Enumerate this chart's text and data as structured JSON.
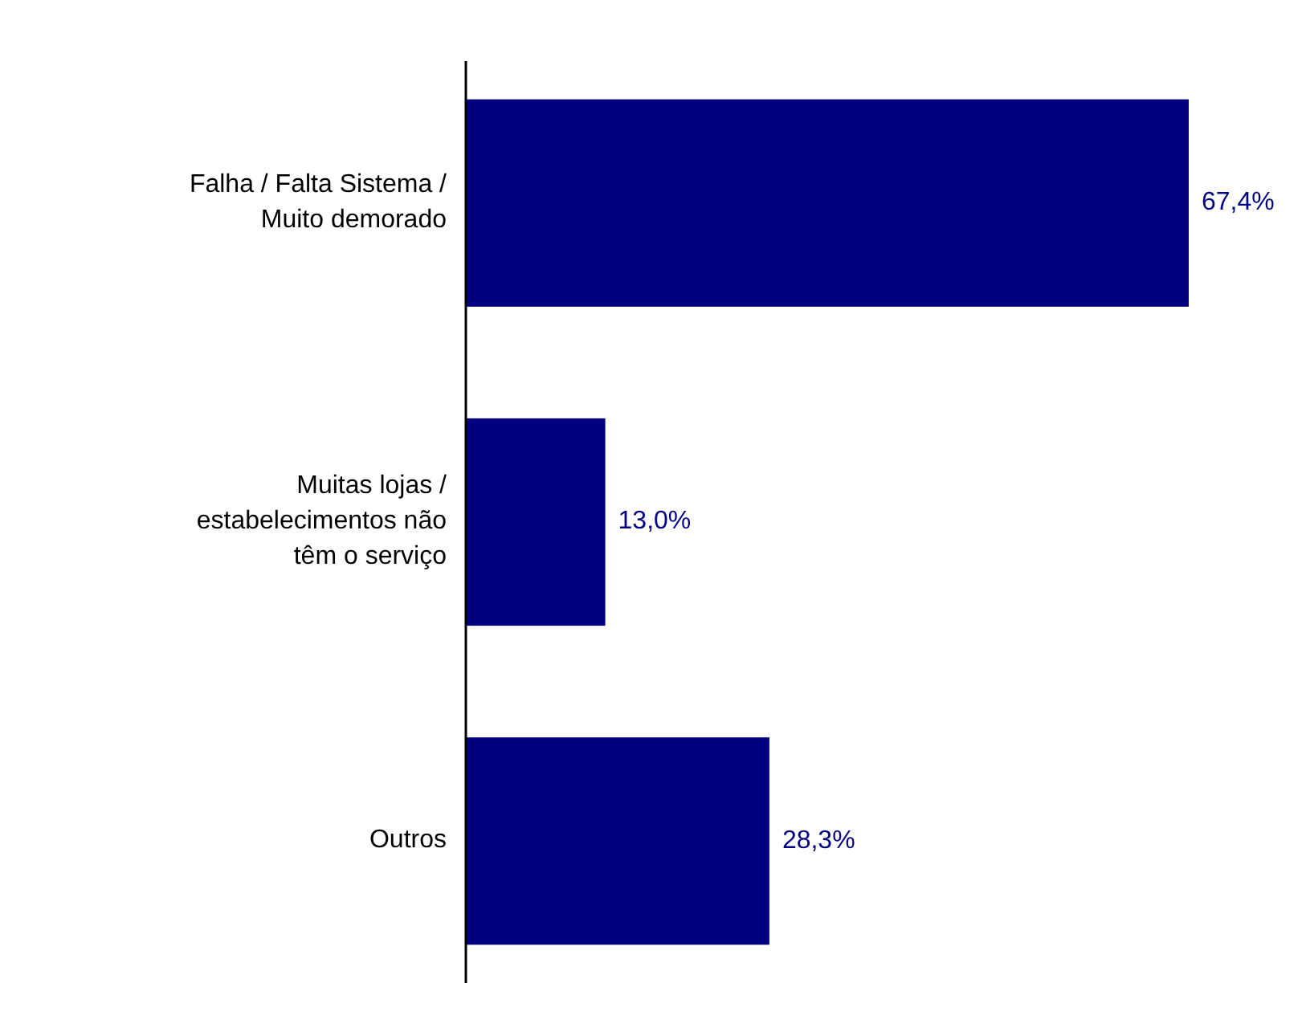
{
  "chart_data": {
    "type": "bar",
    "orientation": "horizontal",
    "categories": [
      "Falha / Falta Sistema / Muito demorado",
      "Muitas lojas / estabelecimentos não têm o serviço",
      "Outros"
    ],
    "values": [
      67.4,
      13.0,
      28.3
    ],
    "color": "#000080",
    "value_labels": [
      "67,4%",
      "13,0%",
      "28,3%"
    ]
  }
}
